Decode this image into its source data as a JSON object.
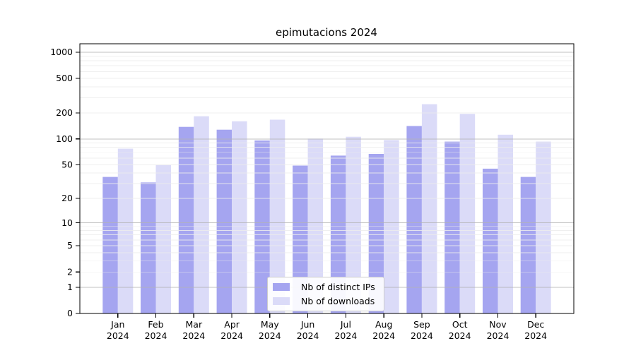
{
  "title": "epimutacions 2024",
  "legend": {
    "entries": [
      {
        "label": "Nb of distinct IPs"
      },
      {
        "label": "Nb of downloads"
      }
    ]
  },
  "chart_data": {
    "type": "bar",
    "title": "epimutacions 2024",
    "months": [
      "Jan",
      "Feb",
      "Mar",
      "Apr",
      "May",
      "Jun",
      "Jul",
      "Aug",
      "Sep",
      "Oct",
      "Nov",
      "Dec"
    ],
    "year_label": "2024",
    "series": [
      {
        "name": "Nb of distinct IPs",
        "color": "#a5a5f0",
        "values": [
          36,
          31,
          138,
          128,
          96,
          49,
          64,
          67,
          141,
          93,
          45,
          36
        ]
      },
      {
        "name": "Nb of downloads",
        "color": "#dbdbf8",
        "values": [
          77,
          50,
          183,
          160,
          167,
          101,
          106,
          97,
          252,
          195,
          112,
          93
        ]
      }
    ],
    "yticks": [
      0,
      1,
      2,
      5,
      10,
      20,
      50,
      100,
      200,
      500,
      1000
    ],
    "major_gridlines": [
      1,
      10,
      100,
      1000
    ],
    "scale": "log1p",
    "ylim": [
      0,
      1250
    ],
    "grid": true,
    "legend_position": "bottom-center",
    "colors": {
      "major_grid": "#b3b3b3",
      "minor_grid": "#ededed",
      "axis": "#000000",
      "text": "#000000"
    }
  }
}
